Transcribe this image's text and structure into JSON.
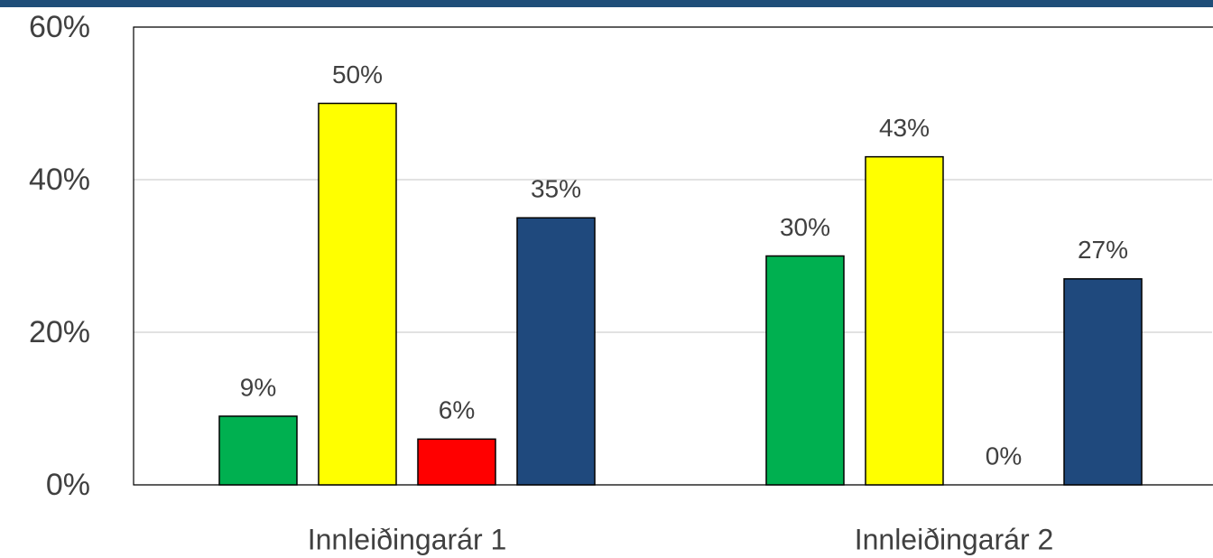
{
  "chart_data": {
    "type": "bar",
    "categories": [
      "Innleiðingarár 1",
      "Innleiðingarár 2"
    ],
    "series": [
      {
        "color": "#00b050",
        "values": [
          9,
          30
        ],
        "value_labels": [
          "9%",
          "30%"
        ]
      },
      {
        "color": "#ffff00",
        "values": [
          50,
          43
        ],
        "value_labels": [
          "50%",
          "43%"
        ]
      },
      {
        "color": "#ff0000",
        "values": [
          6,
          0
        ],
        "value_labels": [
          "6%",
          "0%"
        ]
      },
      {
        "color": "#1f497d",
        "values": [
          35,
          27
        ],
        "value_labels": [
          "35%",
          "27%"
        ]
      }
    ],
    "ylim": [
      0,
      60
    ],
    "yticks": [
      {
        "value": 0,
        "label": "0%"
      },
      {
        "value": 20,
        "label": "20%"
      },
      {
        "value": 40,
        "label": "40%"
      },
      {
        "value": 60,
        "label": "60%"
      }
    ],
    "grid": true
  }
}
